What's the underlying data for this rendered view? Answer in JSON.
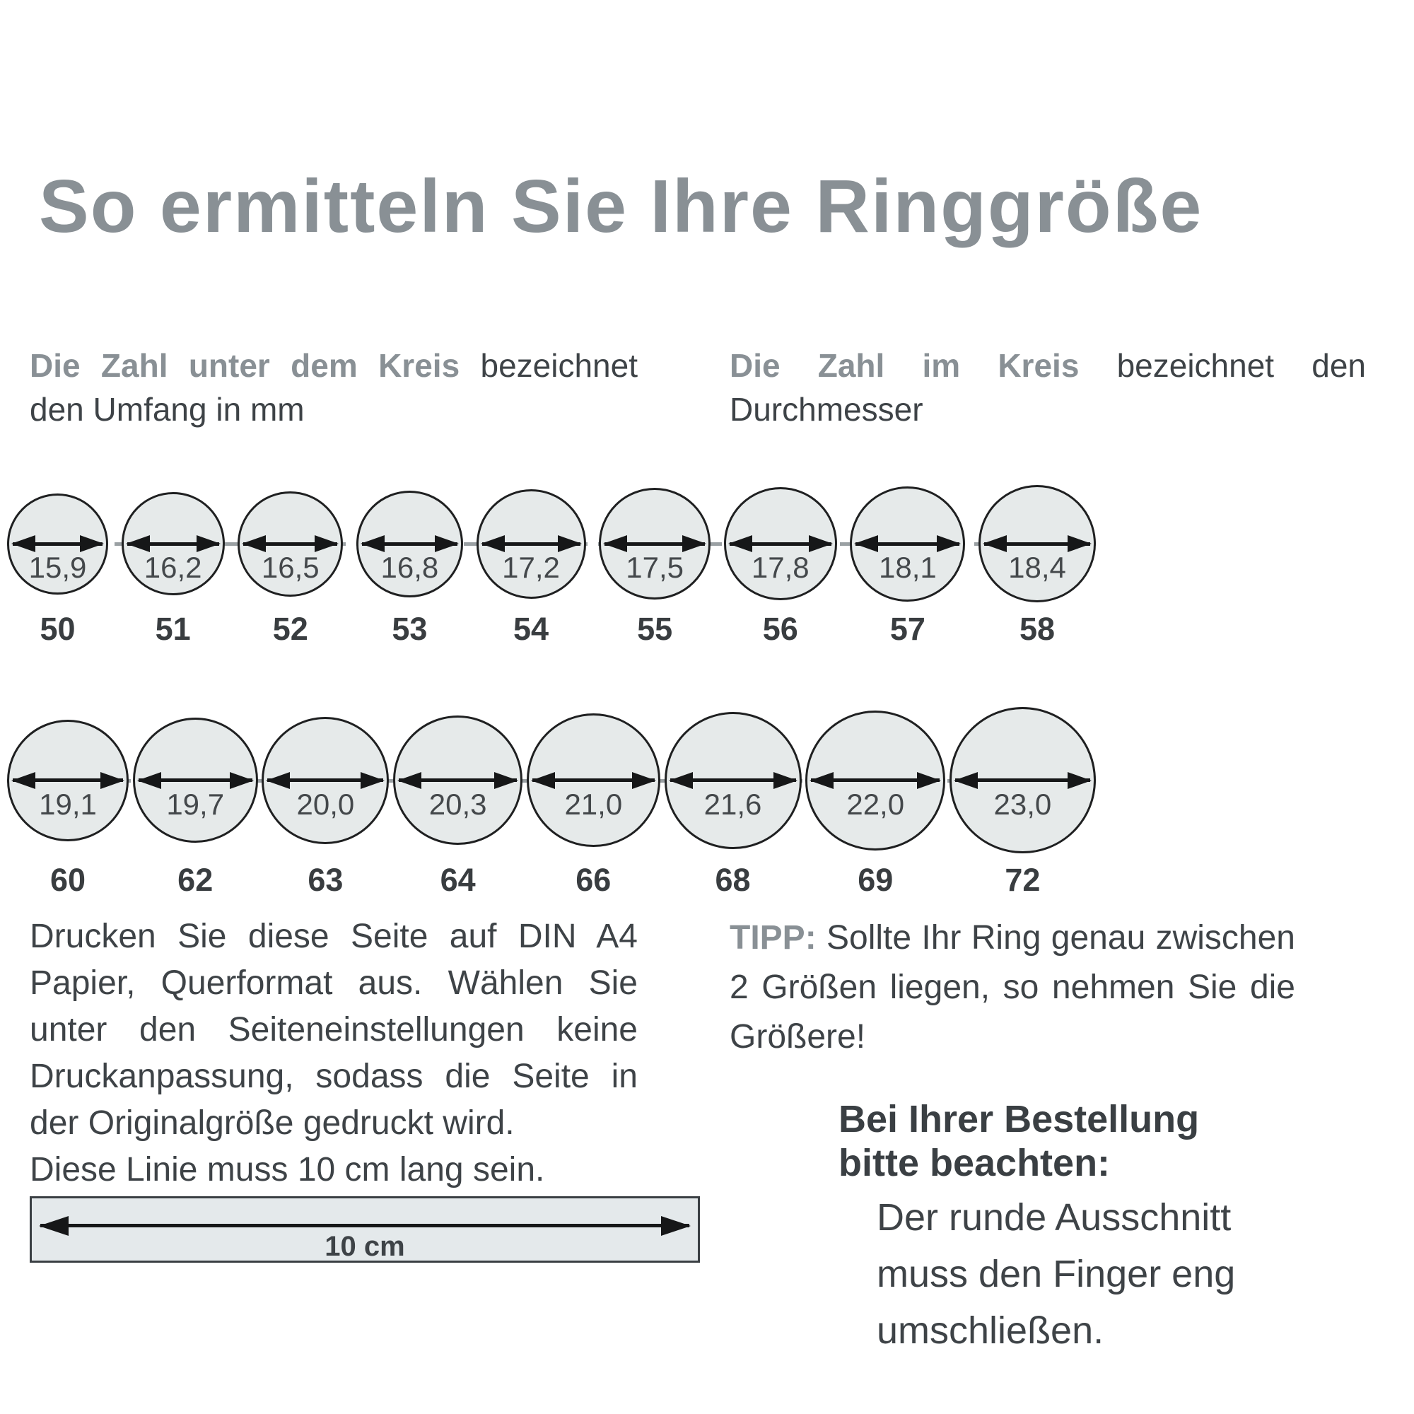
{
  "title": "So ermitteln Sie Ihre Ringgröße",
  "intro": {
    "left": {
      "lead": "Die Zahl unter dem Kreis",
      "rest": " bezeichnet den Umfang in mm"
    },
    "right": {
      "lead": "Die Zahl im Kreis",
      "rest": " bezeichnet den Durchmesser"
    }
  },
  "rows": [
    {
      "circles": [
        {
          "diameter_mm": "15,9",
          "size": "50"
        },
        {
          "diameter_mm": "16,2",
          "size": "51"
        },
        {
          "diameter_mm": "16,5",
          "size": "52"
        },
        {
          "diameter_mm": "16,8",
          "size": "53"
        },
        {
          "diameter_mm": "17,2",
          "size": "54"
        },
        {
          "diameter_mm": "17,5",
          "size": "55"
        },
        {
          "diameter_mm": "17,8",
          "size": "56"
        },
        {
          "diameter_mm": "18,1",
          "size": "57"
        },
        {
          "diameter_mm": "18,4",
          "size": "58"
        }
      ]
    },
    {
      "circles": [
        {
          "diameter_mm": "19,1",
          "size": "60"
        },
        {
          "diameter_mm": "19,7",
          "size": "62"
        },
        {
          "diameter_mm": "20,0",
          "size": "63"
        },
        {
          "diameter_mm": "20,3",
          "size": "64"
        },
        {
          "diameter_mm": "21,0",
          "size": "66"
        },
        {
          "diameter_mm": "21,6",
          "size": "68"
        },
        {
          "diameter_mm": "22,0",
          "size": "69"
        },
        {
          "diameter_mm": "23,0",
          "size": "72"
        }
      ]
    }
  ],
  "print_note": "Drucken Sie diese Seite auf DIN A4 Papier, Querformat aus. Wählen Sie unter den Seiteneinstellungen keine Druckanpassung, sodass die Seite in der Originalgröße gedruckt wird.",
  "line_note": "Diese Linie muss 10 cm lang sein.",
  "ruler": {
    "label": "10 cm"
  },
  "tip": {
    "lead": "TIPP:",
    "rest": " Sollte Ihr Ring genau zwischen 2 Größen liegen, so nehmen Sie die Größere!"
  },
  "order": {
    "heading": "Bei Ihrer Bestellung bitte beachten:",
    "body": "Der runde Ausschnitt muss den Finger eng umschließen."
  },
  "colors": {
    "accent_gray": "#899095",
    "text_dark": "#3e4347",
    "circle_fill": "#e6eaea",
    "circle_border": "#1f2021",
    "dash_gray": "#9aa0a3",
    "arrow_black": "#161718",
    "ruler_fill": "#e4e9eb"
  }
}
